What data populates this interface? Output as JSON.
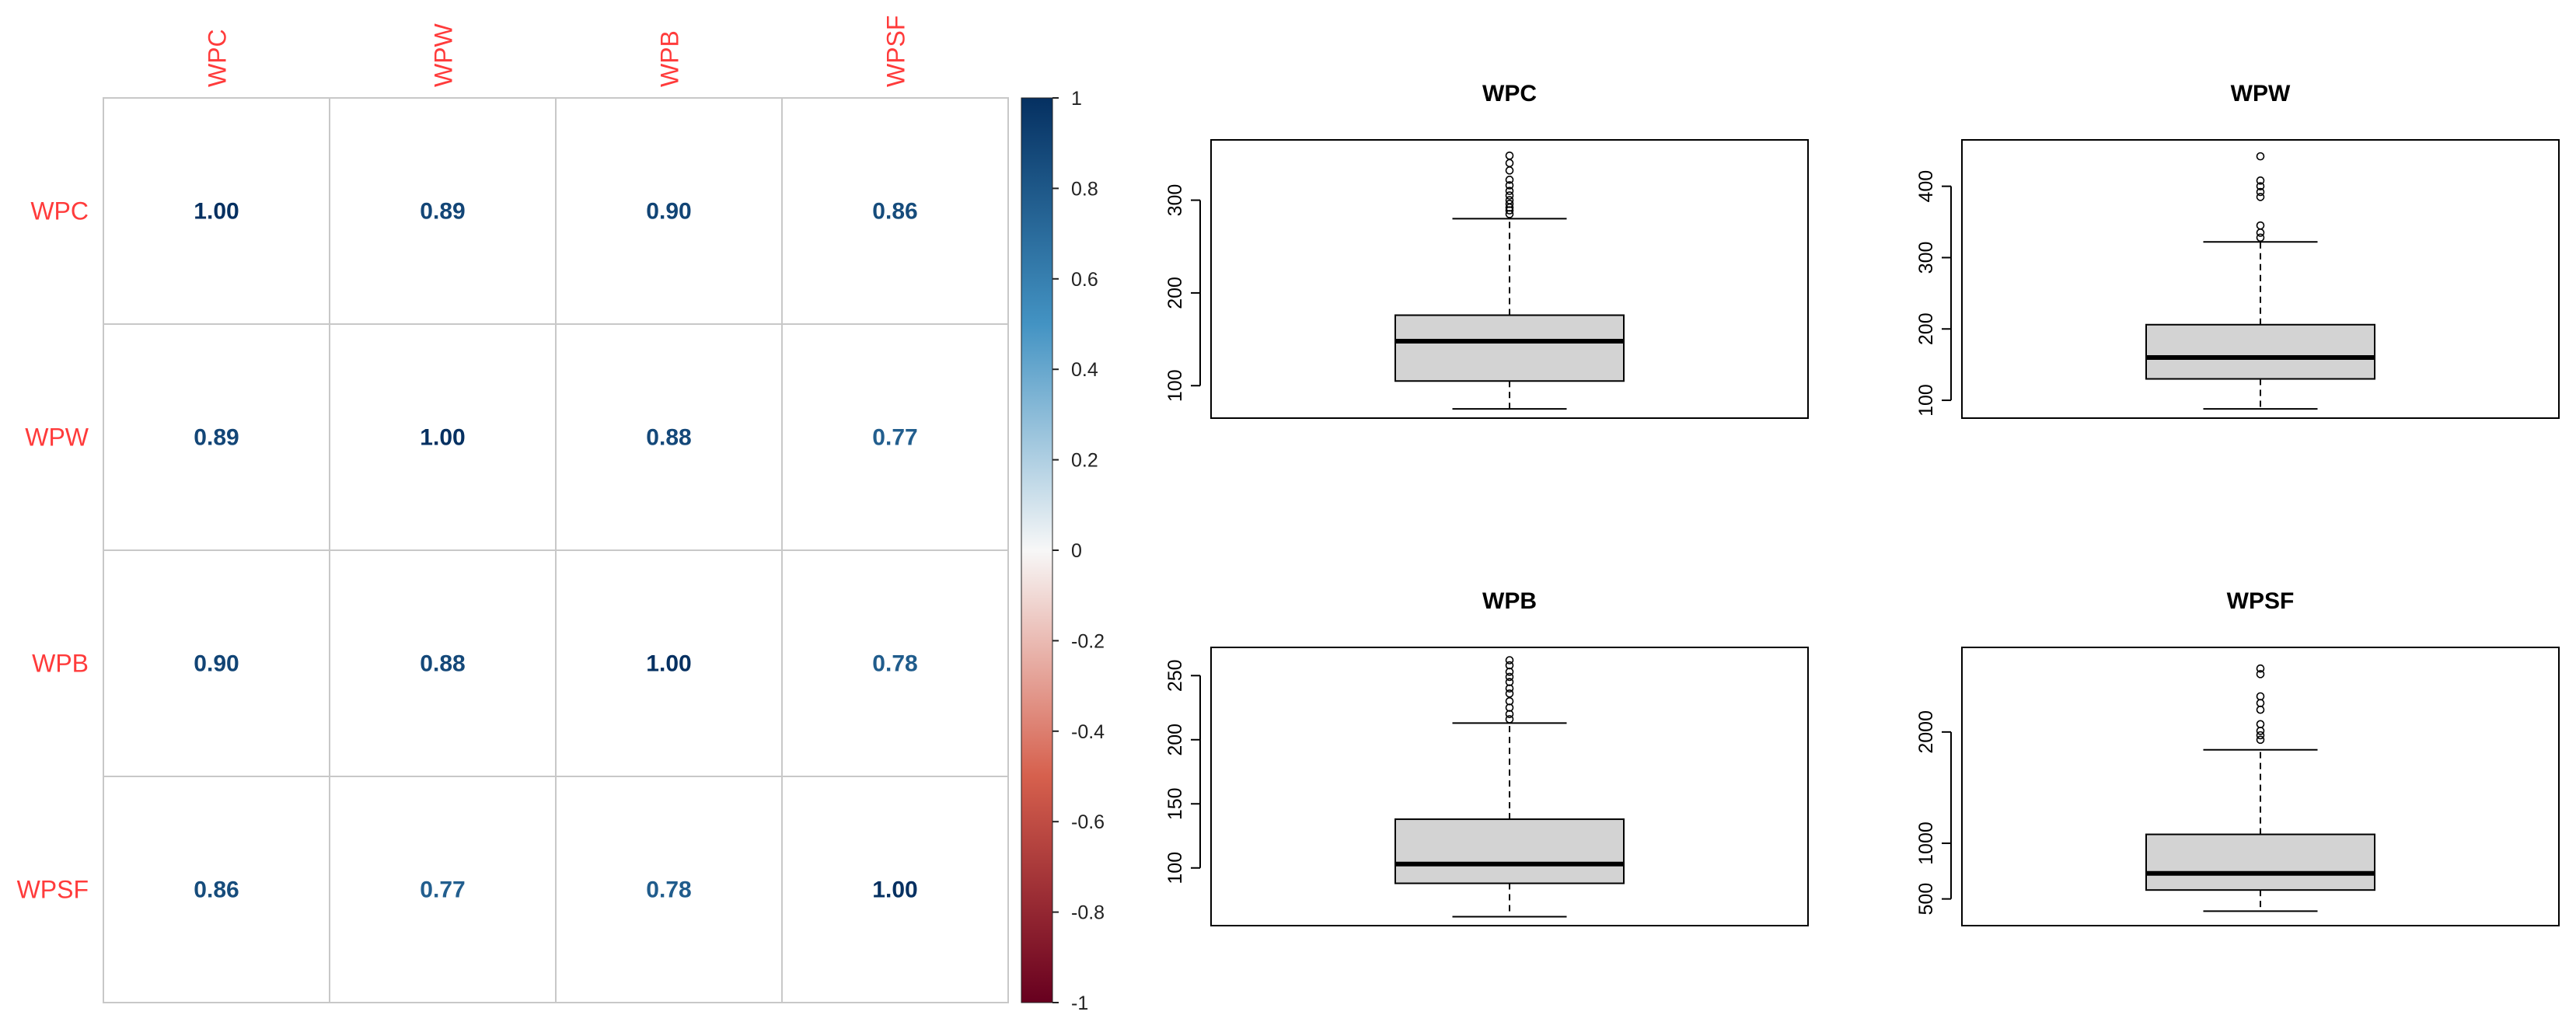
{
  "colors": {
    "label": "#ff3b3b",
    "grid": "#c8c8c8",
    "box_fill": "#d3d3d3",
    "neg_strong": "#67001f",
    "neg_mid": "#d6604d",
    "zero": "#f7f7f7",
    "pos_mid": "#4393c3",
    "pos_strong": "#053061"
  },
  "chart_data": [
    {
      "type": "heatmap",
      "title": "",
      "variables": [
        "WPC",
        "WPW",
        "WPB",
        "WPSF"
      ],
      "matrix": [
        [
          1.0,
          0.89,
          0.9,
          0.86
        ],
        [
          0.89,
          1.0,
          0.88,
          0.77
        ],
        [
          0.9,
          0.88,
          1.0,
          0.78
        ],
        [
          0.86,
          0.77,
          0.78,
          1.0
        ]
      ],
      "value_labels": [
        [
          "1.00",
          "0.89",
          "0.90",
          "0.86"
        ],
        [
          "0.89",
          "1.00",
          "0.88",
          "0.77"
        ],
        [
          "0.90",
          "0.88",
          "1.00",
          "0.78"
        ],
        [
          "0.86",
          "0.77",
          "0.78",
          "1.00"
        ]
      ],
      "colorbar": {
        "range": [
          -1,
          1
        ],
        "ticks": [
          1,
          0.8,
          0.6,
          0.4,
          0.2,
          0,
          -0.2,
          -0.4,
          -0.6,
          -0.8,
          -1
        ],
        "tick_labels": [
          "1",
          "0.8",
          "0.6",
          "0.4",
          "0.2",
          "0",
          "-0.2",
          "-0.4",
          "-0.6",
          "-0.8",
          "-1"
        ]
      }
    },
    {
      "type": "box",
      "title": "WPC",
      "ylim": [
        65,
        365
      ],
      "yticks": [
        100,
        200,
        300
      ],
      "ytick_labels": [
        "100",
        "200",
        "300"
      ],
      "min": 75,
      "q1": 105,
      "median": 148,
      "q3": 176,
      "whisker_high": 280,
      "outliers": [
        285,
        289,
        292,
        296,
        300,
        305,
        310,
        316,
        322,
        332,
        340,
        348
      ]
    },
    {
      "type": "box",
      "title": "WPW",
      "ylim": [
        75,
        465
      ],
      "yticks": [
        100,
        200,
        300,
        400
      ],
      "ytick_labels": [
        "100",
        "200",
        "300",
        "400"
      ],
      "min": 88,
      "q1": 130,
      "median": 160,
      "q3": 206,
      "whisker_high": 322,
      "outliers": [
        328,
        335,
        345,
        385,
        392,
        400,
        408,
        442
      ]
    },
    {
      "type": "box",
      "title": "WPB",
      "ylim": [
        55,
        272
      ],
      "yticks": [
        100,
        150,
        200,
        250
      ],
      "ytick_labels": [
        "100",
        "150",
        "200",
        "250"
      ],
      "min": 62,
      "q1": 88,
      "median": 103,
      "q3": 138,
      "whisker_high": 213,
      "outliers": [
        216,
        220,
        225,
        230,
        236,
        240,
        245,
        249,
        253,
        258,
        262
      ]
    },
    {
      "type": "box",
      "title": "WPSF",
      "ylim": [
        260,
        2760
      ],
      "yticks": [
        500,
        1000,
        2000
      ],
      "ytick_labels": [
        "500",
        "1000",
        "2000"
      ],
      "min": 390,
      "q1": 580,
      "median": 730,
      "q3": 1080,
      "whisker_high": 1840,
      "outliers": [
        1930,
        1970,
        2010,
        2070,
        2200,
        2260,
        2320,
        2520,
        2570
      ]
    }
  ]
}
